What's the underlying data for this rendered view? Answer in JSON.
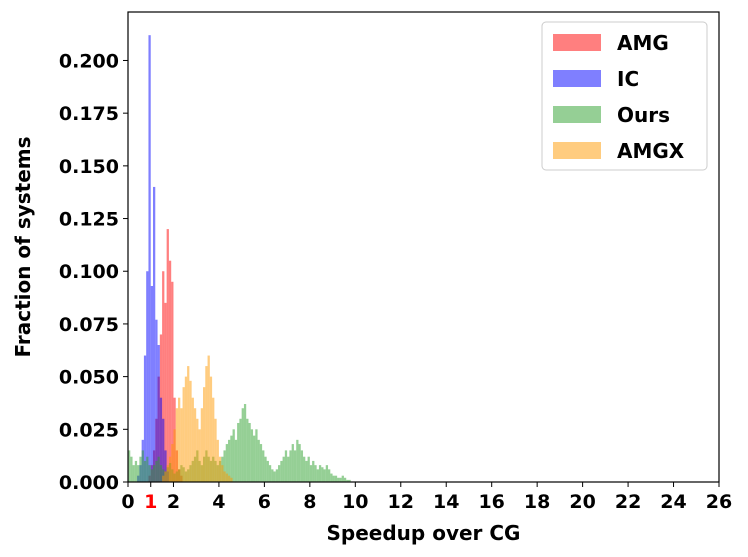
{
  "chart_data": {
    "type": "bar",
    "xlabel": "Speedup over CG",
    "ylabel": "Fraction of systems",
    "xlim": [
      0,
      26
    ],
    "ylim": [
      0,
      0.223
    ],
    "x_ticks": [
      "0",
      "2",
      "4",
      "6",
      "8",
      "10",
      "12",
      "14",
      "16",
      "18",
      "20",
      "22",
      "24",
      "26"
    ],
    "x_tick_values": [
      0,
      2,
      4,
      6,
      8,
      10,
      12,
      14,
      16,
      18,
      20,
      22,
      24,
      26
    ],
    "highlight_tick": {
      "label": "1",
      "value": 1,
      "color": "#ff0000"
    },
    "y_ticks": [
      "0.000",
      "0.025",
      "0.050",
      "0.075",
      "0.100",
      "0.125",
      "0.150",
      "0.175",
      "0.200"
    ],
    "y_tick_values": [
      0,
      0.025,
      0.05,
      0.075,
      0.1,
      0.125,
      0.15,
      0.175,
      0.2
    ],
    "grid": false,
    "legend_position": "top-right",
    "bin_width": 0.1,
    "series": [
      {
        "name": "AMG",
        "color": "#ff0000",
        "bins": [
          {
            "x": 0.9,
            "y": 0.003
          },
          {
            "x": 1.0,
            "y": 0.008
          },
          {
            "x": 1.1,
            "y": 0.015
          },
          {
            "x": 1.2,
            "y": 0.03
          },
          {
            "x": 1.3,
            "y": 0.05
          },
          {
            "x": 1.4,
            "y": 0.07
          },
          {
            "x": 1.5,
            "y": 0.1
          },
          {
            "x": 1.6,
            "y": 0.085
          },
          {
            "x": 1.7,
            "y": 0.12
          },
          {
            "x": 1.8,
            "y": 0.105
          },
          {
            "x": 1.9,
            "y": 0.095
          },
          {
            "x": 2.0,
            "y": 0.04
          },
          {
            "x": 2.1,
            "y": 0.015
          },
          {
            "x": 2.2,
            "y": 0.006
          },
          {
            "x": 2.3,
            "y": 0.003
          }
        ]
      },
      {
        "name": "IC",
        "color": "#0000ff",
        "bins": [
          {
            "x": 0.4,
            "y": 0.003
          },
          {
            "x": 0.5,
            "y": 0.008
          },
          {
            "x": 0.6,
            "y": 0.02
          },
          {
            "x": 0.7,
            "y": 0.06
          },
          {
            "x": 0.8,
            "y": 0.1
          },
          {
            "x": 0.9,
            "y": 0.212
          },
          {
            "x": 1.0,
            "y": 0.093
          },
          {
            "x": 1.1,
            "y": 0.14
          },
          {
            "x": 1.2,
            "y": 0.077
          },
          {
            "x": 1.3,
            "y": 0.065
          },
          {
            "x": 1.4,
            "y": 0.04
          },
          {
            "x": 1.5,
            "y": 0.03
          },
          {
            "x": 1.6,
            "y": 0.015
          },
          {
            "x": 1.7,
            "y": 0.005
          }
        ]
      },
      {
        "name": "Ours",
        "color": "#2ca02c",
        "bins": [
          {
            "x": 0.0,
            "y": 0.015
          },
          {
            "x": 0.1,
            "y": 0.012
          },
          {
            "x": 0.2,
            "y": 0.008
          },
          {
            "x": 0.3,
            "y": 0.01
          },
          {
            "x": 0.4,
            "y": 0.008
          },
          {
            "x": 0.5,
            "y": 0.012
          },
          {
            "x": 0.6,
            "y": 0.015
          },
          {
            "x": 0.7,
            "y": 0.01
          },
          {
            "x": 0.8,
            "y": 0.012
          },
          {
            "x": 0.9,
            "y": 0.008
          },
          {
            "x": 1.0,
            "y": 0.006
          },
          {
            "x": 1.1,
            "y": 0.008
          },
          {
            "x": 1.2,
            "y": 0.01
          },
          {
            "x": 1.3,
            "y": 0.012
          },
          {
            "x": 1.4,
            "y": 0.008
          },
          {
            "x": 1.5,
            "y": 0.006
          },
          {
            "x": 1.6,
            "y": 0.005
          },
          {
            "x": 1.7,
            "y": 0.007
          },
          {
            "x": 1.8,
            "y": 0.009
          },
          {
            "x": 1.9,
            "y": 0.006
          },
          {
            "x": 2.0,
            "y": 0.004
          },
          {
            "x": 2.1,
            "y": 0.005
          },
          {
            "x": 2.2,
            "y": 0.006
          },
          {
            "x": 2.3,
            "y": 0.008
          },
          {
            "x": 2.4,
            "y": 0.007
          },
          {
            "x": 2.5,
            "y": 0.005
          },
          {
            "x": 2.6,
            "y": 0.006
          },
          {
            "x": 2.7,
            "y": 0.008
          },
          {
            "x": 2.8,
            "y": 0.01
          },
          {
            "x": 2.9,
            "y": 0.012
          },
          {
            "x": 3.0,
            "y": 0.015
          },
          {
            "x": 3.1,
            "y": 0.01
          },
          {
            "x": 3.2,
            "y": 0.008
          },
          {
            "x": 3.3,
            "y": 0.012
          },
          {
            "x": 3.4,
            "y": 0.015
          },
          {
            "x": 3.5,
            "y": 0.012
          },
          {
            "x": 3.6,
            "y": 0.01
          },
          {
            "x": 3.7,
            "y": 0.012
          },
          {
            "x": 3.8,
            "y": 0.01
          },
          {
            "x": 3.9,
            "y": 0.008
          },
          {
            "x": 4.0,
            "y": 0.01
          },
          {
            "x": 4.1,
            "y": 0.012
          },
          {
            "x": 4.2,
            "y": 0.015
          },
          {
            "x": 4.3,
            "y": 0.018
          },
          {
            "x": 4.4,
            "y": 0.02
          },
          {
            "x": 4.5,
            "y": 0.022
          },
          {
            "x": 4.6,
            "y": 0.025
          },
          {
            "x": 4.7,
            "y": 0.02
          },
          {
            "x": 4.8,
            "y": 0.028
          },
          {
            "x": 4.9,
            "y": 0.03
          },
          {
            "x": 5.0,
            "y": 0.035
          },
          {
            "x": 5.1,
            "y": 0.037
          },
          {
            "x": 5.2,
            "y": 0.03
          },
          {
            "x": 5.3,
            "y": 0.028
          },
          {
            "x": 5.4,
            "y": 0.025
          },
          {
            "x": 5.5,
            "y": 0.022
          },
          {
            "x": 5.6,
            "y": 0.025
          },
          {
            "x": 5.7,
            "y": 0.02
          },
          {
            "x": 5.8,
            "y": 0.018
          },
          {
            "x": 5.9,
            "y": 0.015
          },
          {
            "x": 6.0,
            "y": 0.012
          },
          {
            "x": 6.1,
            "y": 0.01
          },
          {
            "x": 6.2,
            "y": 0.008
          },
          {
            "x": 6.3,
            "y": 0.006
          },
          {
            "x": 6.4,
            "y": 0.005
          },
          {
            "x": 6.5,
            "y": 0.006
          },
          {
            "x": 6.6,
            "y": 0.008
          },
          {
            "x": 6.7,
            "y": 0.01
          },
          {
            "x": 6.8,
            "y": 0.012
          },
          {
            "x": 6.9,
            "y": 0.015
          },
          {
            "x": 7.0,
            "y": 0.012
          },
          {
            "x": 7.1,
            "y": 0.015
          },
          {
            "x": 7.2,
            "y": 0.018
          },
          {
            "x": 7.3,
            "y": 0.015
          },
          {
            "x": 7.4,
            "y": 0.02
          },
          {
            "x": 7.5,
            "y": 0.018
          },
          {
            "x": 7.6,
            "y": 0.015
          },
          {
            "x": 7.7,
            "y": 0.012
          },
          {
            "x": 7.8,
            "y": 0.01
          },
          {
            "x": 7.9,
            "y": 0.012
          },
          {
            "x": 8.0,
            "y": 0.008
          },
          {
            "x": 8.1,
            "y": 0.01
          },
          {
            "x": 8.2,
            "y": 0.008
          },
          {
            "x": 8.3,
            "y": 0.006
          },
          {
            "x": 8.4,
            "y": 0.008
          },
          {
            "x": 8.5,
            "y": 0.007
          },
          {
            "x": 8.6,
            "y": 0.006
          },
          {
            "x": 8.7,
            "y": 0.008
          },
          {
            "x": 8.8,
            "y": 0.006
          },
          {
            "x": 8.9,
            "y": 0.004
          },
          {
            "x": 9.0,
            "y": 0.003
          },
          {
            "x": 9.1,
            "y": 0.003
          },
          {
            "x": 9.2,
            "y": 0.002
          },
          {
            "x": 9.3,
            "y": 0.002
          },
          {
            "x": 9.4,
            "y": 0.003
          },
          {
            "x": 9.5,
            "y": 0.002
          },
          {
            "x": 9.6,
            "y": 0.001
          },
          {
            "x": 9.7,
            "y": 0.001
          }
        ]
      },
      {
        "name": "AMGX",
        "color": "#ff9900",
        "bins": [
          {
            "x": 1.5,
            "y": 0.003
          },
          {
            "x": 1.6,
            "y": 0.005
          },
          {
            "x": 1.7,
            "y": 0.008
          },
          {
            "x": 1.8,
            "y": 0.012
          },
          {
            "x": 1.9,
            "y": 0.018
          },
          {
            "x": 2.0,
            "y": 0.025
          },
          {
            "x": 2.1,
            "y": 0.035
          },
          {
            "x": 2.2,
            "y": 0.04
          },
          {
            "x": 2.3,
            "y": 0.035
          },
          {
            "x": 2.4,
            "y": 0.045
          },
          {
            "x": 2.5,
            "y": 0.05
          },
          {
            "x": 2.6,
            "y": 0.055
          },
          {
            "x": 2.7,
            "y": 0.048
          },
          {
            "x": 2.8,
            "y": 0.04
          },
          {
            "x": 2.9,
            "y": 0.035
          },
          {
            "x": 3.0,
            "y": 0.03
          },
          {
            "x": 3.1,
            "y": 0.025
          },
          {
            "x": 3.2,
            "y": 0.035
          },
          {
            "x": 3.3,
            "y": 0.045
          },
          {
            "x": 3.4,
            "y": 0.055
          },
          {
            "x": 3.5,
            "y": 0.06
          },
          {
            "x": 3.6,
            "y": 0.05
          },
          {
            "x": 3.7,
            "y": 0.04
          },
          {
            "x": 3.8,
            "y": 0.03
          },
          {
            "x": 3.9,
            "y": 0.02
          },
          {
            "x": 4.0,
            "y": 0.012
          },
          {
            "x": 4.1,
            "y": 0.008
          },
          {
            "x": 4.2,
            "y": 0.005
          },
          {
            "x": 4.3,
            "y": 0.004
          },
          {
            "x": 4.4,
            "y": 0.003
          },
          {
            "x": 4.5,
            "y": 0.002
          }
        ]
      }
    ]
  }
}
